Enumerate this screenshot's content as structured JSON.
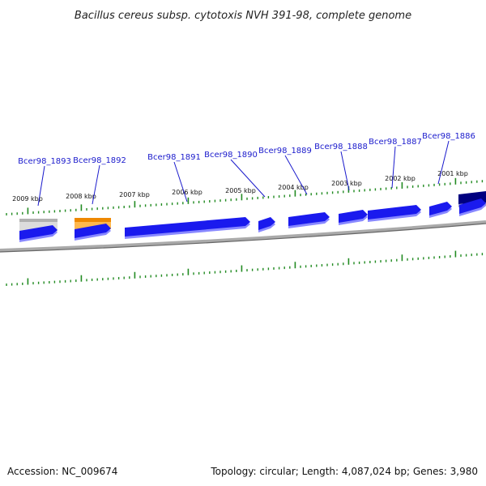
{
  "title": "Bacillus cereus subsp. cytotoxis NVH 391-98, complete genome",
  "footer": {
    "accession": "Accession: NC_009674",
    "summary": "Topology: circular; Length: 4,087,024 bp; Genes: 3,980"
  },
  "colors": {
    "cds_blue": "#1a1aee",
    "cds_shadow": "#8888ff",
    "gene_orange": "#ee8800",
    "gene_gray": "#b8b8b8",
    "gene_navy": "#000080",
    "backbone": "#888888",
    "tick_green": "#228b22",
    "label_blue": "#1a1acc"
  },
  "scale_labels": [
    "2009 kbp",
    "2008 kbp",
    "2007 kbp",
    "2006 kbp",
    "2005 kbp",
    "2004 kbp",
    "2003 kbp",
    "2002 kbp",
    "2001 kbp"
  ],
  "gene_labels": [
    "Bcer98_1893",
    "Bcer98_1892",
    "Bcer98_1891",
    "Bcer98_1890",
    "Bcer98_1889",
    "Bcer98_1888",
    "Bcer98_1887",
    "Bcer98_1886"
  ]
}
